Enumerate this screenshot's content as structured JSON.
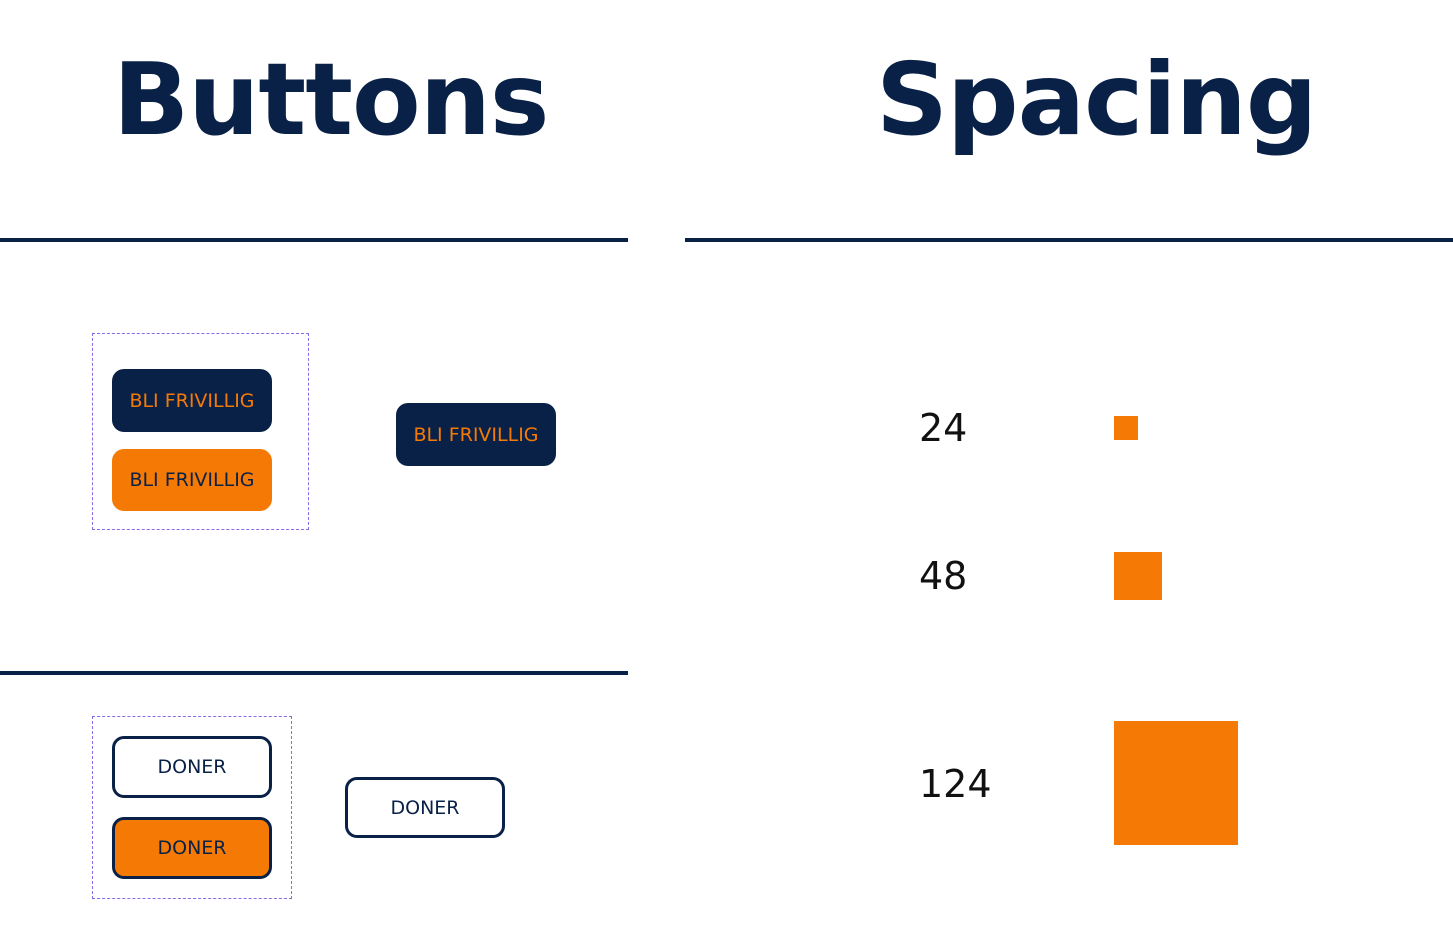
{
  "headings": {
    "buttons": "Buttons",
    "spacing": "Spacing"
  },
  "colors": {
    "navy": "#0a2147",
    "orange": "#f57a05",
    "group_outline": "#8a6ae6"
  },
  "buttons": {
    "primary": {
      "dark_variant": "BLI FRIVILLIG",
      "orange_variant": "BLI FRIVILLIG",
      "standalone": "BLI FRIVILLIG"
    },
    "secondary": {
      "outline_variant": "DONER",
      "orange_variant": "DONER",
      "standalone": "DONER"
    }
  },
  "spacing": {
    "items": [
      {
        "label": "24",
        "value": 24
      },
      {
        "label": "48",
        "value": 48
      },
      {
        "label": "124",
        "value": 124
      }
    ]
  }
}
